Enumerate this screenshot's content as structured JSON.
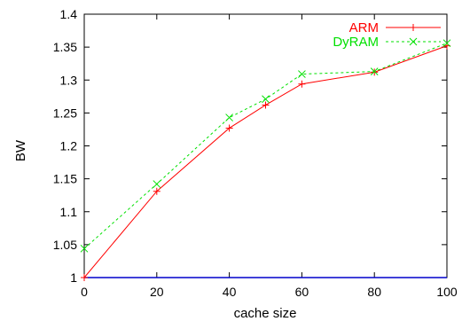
{
  "chart_data": {
    "type": "line",
    "xlabel": "cache size",
    "ylabel": "BW",
    "xlim": [
      0,
      100
    ],
    "ylim": [
      1,
      1.4
    ],
    "x_ticks": [
      0,
      20,
      40,
      60,
      80,
      100
    ],
    "y_ticks": [
      1,
      1.05,
      1.1,
      1.15,
      1.2,
      1.25,
      1.3,
      1.35,
      1.4
    ],
    "x_tick_labels": [
      "0",
      "20",
      "40",
      "60",
      "80",
      "100"
    ],
    "y_tick_labels": [
      "1",
      "1.05",
      "1.1",
      "1.15",
      "1.2",
      "1.25",
      "1.3",
      "1.35",
      "1.4"
    ],
    "grid": false,
    "legend_position": "top-right",
    "baseline": {
      "value": 1,
      "color": "#0000cc"
    },
    "series": [
      {
        "name": "ARM",
        "color": "#ff0000",
        "dash": "solid",
        "marker": "plus",
        "x": [
          0,
          20,
          40,
          50,
          60,
          80,
          100
        ],
        "values": [
          1.0,
          1.131,
          1.227,
          1.262,
          1.294,
          1.312,
          1.352
        ]
      },
      {
        "name": "DyRAM",
        "color": "#00e000",
        "dash": "dashed",
        "marker": "cross",
        "x": [
          0,
          20,
          40,
          50,
          60,
          80,
          100
        ],
        "values": [
          1.044,
          1.142,
          1.243,
          1.271,
          1.309,
          1.313,
          1.356
        ]
      }
    ]
  }
}
